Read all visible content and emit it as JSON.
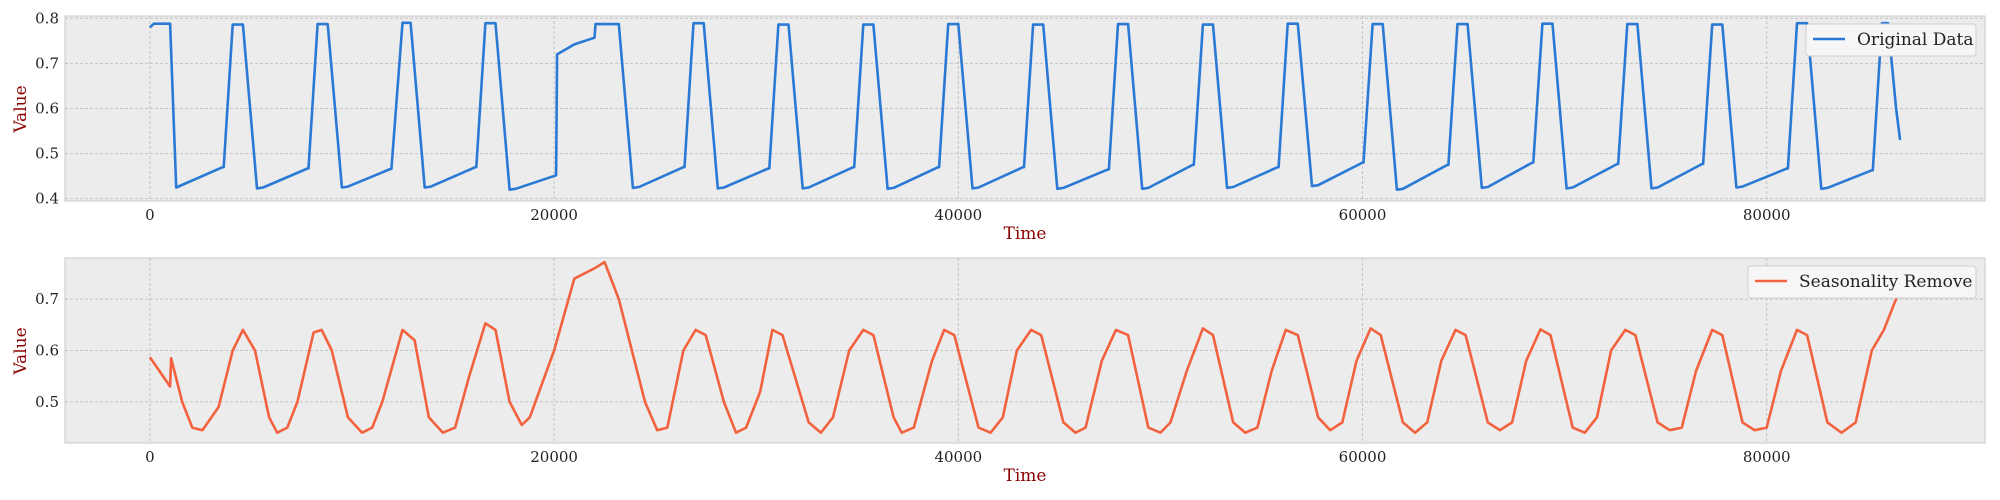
{
  "figure": {
    "panels": [
      {
        "name": "original",
        "legend_label": "Original Data",
        "xlabel": "Time",
        "ylabel": "Value",
        "x_ticks": [
          0,
          20000,
          40000,
          60000,
          80000
        ],
        "y_ticks": [
          "0.4",
          "0.5",
          "0.6",
          "0.7",
          "0.8"
        ]
      },
      {
        "name": "seasonality",
        "legend_label": "Seasonality Remove",
        "xlabel": "Time",
        "ylabel": "Value",
        "x_ticks": [
          0,
          20000,
          40000,
          60000,
          80000
        ],
        "y_ticks": [
          "0.5",
          "0.6",
          "0.7"
        ]
      }
    ]
  },
  "chart_data": [
    {
      "type": "line",
      "xlabel": "Time",
      "ylabel": "Value",
      "xlim": [
        -4200,
        90800
      ],
      "ylim": [
        0.395,
        0.805
      ],
      "grid": true,
      "legend_position": "top-right",
      "color": "#2a7ad5",
      "series": [
        {
          "name": "Original Data",
          "x": [
            0,
            200,
            1000,
            1300,
            3600,
            3650,
            4100,
            4600,
            5300,
            5600,
            7800,
            7850,
            8300,
            8800,
            9500,
            9800,
            11900,
            11950,
            12500,
            12900,
            13600,
            13900,
            16100,
            16150,
            16600,
            17100,
            17800,
            18100,
            20100,
            20150,
            21000,
            22000,
            22050,
            22600,
            23200,
            23900,
            24200,
            26400,
            26450,
            26900,
            27400,
            28100,
            28400,
            30600,
            30650,
            31100,
            31600,
            32300,
            32600,
            34800,
            34850,
            35300,
            35800,
            36500,
            36800,
            39000,
            39050,
            39500,
            40000,
            40700,
            41000,
            43200,
            43250,
            43700,
            44200,
            44900,
            45200,
            47400,
            47450,
            47900,
            48400,
            49100,
            49400,
            51600,
            51650,
            52100,
            52600,
            53300,
            53600,
            55800,
            55850,
            56300,
            56800,
            57500,
            57800,
            60000,
            60050,
            60500,
            61000,
            61700,
            62000,
            64200,
            64250,
            64700,
            65200,
            65900,
            66200,
            68400,
            68450,
            68900,
            69400,
            70100,
            70400,
            72600,
            72650,
            73100,
            73600,
            74300,
            74600,
            76800,
            76850,
            77300,
            77800,
            78500,
            78800,
            81000,
            81050,
            81500,
            82000,
            82700,
            83000,
            85200,
            85250,
            85700,
            86000,
            86400,
            86600
          ],
          "y": [
            0.78,
            0.788,
            0.788,
            0.425,
            0.47,
            0.47,
            0.786,
            0.786,
            0.423,
            0.425,
            0.467,
            0.467,
            0.787,
            0.787,
            0.425,
            0.427,
            0.466,
            0.466,
            0.79,
            0.79,
            0.425,
            0.427,
            0.47,
            0.47,
            0.789,
            0.789,
            0.42,
            0.422,
            0.452,
            0.72,
            0.742,
            0.757,
            0.787,
            0.787,
            0.787,
            0.424,
            0.426,
            0.47,
            0.47,
            0.789,
            0.789,
            0.423,
            0.425,
            0.467,
            0.467,
            0.786,
            0.786,
            0.423,
            0.425,
            0.47,
            0.47,
            0.786,
            0.786,
            0.422,
            0.424,
            0.47,
            0.47,
            0.787,
            0.787,
            0.423,
            0.425,
            0.47,
            0.47,
            0.786,
            0.786,
            0.422,
            0.424,
            0.465,
            0.465,
            0.787,
            0.787,
            0.422,
            0.424,
            0.475,
            0.475,
            0.786,
            0.786,
            0.424,
            0.426,
            0.47,
            0.47,
            0.788,
            0.788,
            0.428,
            0.43,
            0.48,
            0.48,
            0.787,
            0.787,
            0.42,
            0.422,
            0.475,
            0.475,
            0.787,
            0.787,
            0.424,
            0.426,
            0.48,
            0.48,
            0.788,
            0.788,
            0.423,
            0.425,
            0.477,
            0.477,
            0.787,
            0.787,
            0.423,
            0.425,
            0.477,
            0.477,
            0.786,
            0.786,
            0.425,
            0.427,
            0.467,
            0.467,
            0.789,
            0.789,
            0.422,
            0.424,
            0.463,
            0.463,
            0.789,
            0.789,
            0.6,
            0.53
          ]
        }
      ]
    },
    {
      "type": "line",
      "xlabel": "Time",
      "ylabel": "Value",
      "xlim": [
        -4200,
        90800
      ],
      "ylim": [
        0.42,
        0.78
      ],
      "grid": true,
      "legend_position": "top-right",
      "color": "#f2623f",
      "series": [
        {
          "name": "Seasonality Remove",
          "x": [
            0,
            1000,
            1050,
            1600,
            2100,
            2600,
            3400,
            4100,
            4600,
            5200,
            5900,
            6300,
            6800,
            7300,
            8100,
            8500,
            9000,
            9800,
            10500,
            11000,
            11500,
            12500,
            13100,
            13800,
            14500,
            15100,
            15800,
            16600,
            17100,
            17800,
            18400,
            18800,
            20000,
            21000,
            22000,
            22500,
            23200,
            24500,
            25100,
            25600,
            26400,
            27000,
            27500,
            28400,
            29000,
            29500,
            30200,
            30800,
            31300,
            32600,
            33200,
            33800,
            34600,
            35300,
            35800,
            36800,
            37200,
            37800,
            38700,
            39300,
            39800,
            41000,
            41600,
            42200,
            42900,
            43600,
            44100,
            45200,
            45800,
            46300,
            47100,
            47800,
            48400,
            49400,
            50000,
            50500,
            51300,
            52100,
            52600,
            53600,
            54200,
            54800,
            55500,
            56200,
            56800,
            57800,
            58400,
            59000,
            59700,
            60400,
            60900,
            62000,
            62600,
            63200,
            63900,
            64600,
            65100,
            66200,
            66800,
            67400,
            68100,
            68800,
            69300,
            70400,
            71000,
            71600,
            72300,
            73000,
            73500,
            74600,
            75200,
            75800,
            76500,
            77300,
            77800,
            78800,
            79400,
            80000,
            80700,
            81500,
            82000,
            83000,
            83700,
            84400,
            85200,
            85800,
            86600
          ],
          "y": [
            0.587,
            0.53,
            0.585,
            0.5,
            0.45,
            0.445,
            0.49,
            0.6,
            0.64,
            0.6,
            0.47,
            0.44,
            0.45,
            0.5,
            0.635,
            0.64,
            0.6,
            0.47,
            0.44,
            0.45,
            0.5,
            0.64,
            0.62,
            0.47,
            0.44,
            0.45,
            0.55,
            0.653,
            0.64,
            0.5,
            0.455,
            0.47,
            0.6,
            0.74,
            0.76,
            0.772,
            0.7,
            0.5,
            0.445,
            0.45,
            0.6,
            0.64,
            0.63,
            0.5,
            0.44,
            0.45,
            0.52,
            0.64,
            0.63,
            0.46,
            0.44,
            0.47,
            0.6,
            0.64,
            0.63,
            0.47,
            0.44,
            0.45,
            0.58,
            0.64,
            0.63,
            0.45,
            0.44,
            0.47,
            0.6,
            0.64,
            0.63,
            0.46,
            0.44,
            0.45,
            0.58,
            0.64,
            0.63,
            0.45,
            0.44,
            0.46,
            0.56,
            0.643,
            0.63,
            0.46,
            0.44,
            0.45,
            0.56,
            0.64,
            0.63,
            0.47,
            0.445,
            0.46,
            0.58,
            0.643,
            0.63,
            0.46,
            0.44,
            0.46,
            0.58,
            0.64,
            0.63,
            0.46,
            0.445,
            0.46,
            0.58,
            0.641,
            0.63,
            0.45,
            0.44,
            0.47,
            0.6,
            0.64,
            0.63,
            0.46,
            0.445,
            0.45,
            0.56,
            0.64,
            0.63,
            0.46,
            0.445,
            0.45,
            0.56,
            0.64,
            0.63,
            0.46,
            0.44,
            0.46,
            0.6,
            0.64,
            0.72
          ]
        }
      ]
    }
  ]
}
